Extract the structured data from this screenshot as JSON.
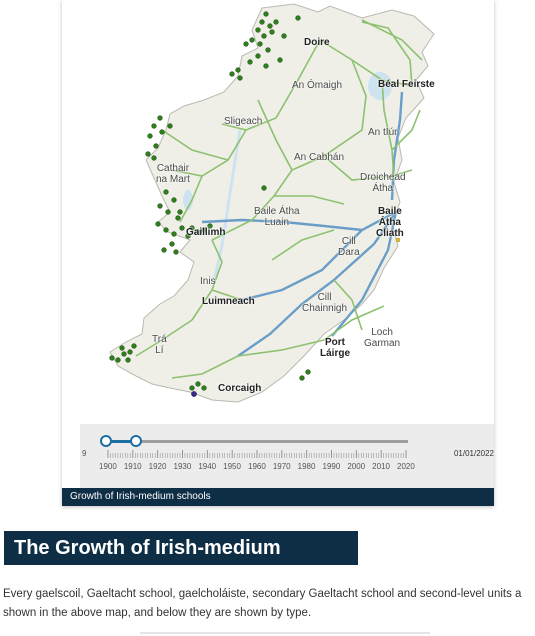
{
  "map": {
    "places": [
      {
        "id": "doire",
        "lines": [
          "Doire"
        ],
        "major": true
      },
      {
        "id": "an-omaigh",
        "lines": [
          "An Ómaigh"
        ],
        "major": false
      },
      {
        "id": "beal-feirste",
        "lines": [
          "Béal Feirste"
        ],
        "major": true
      },
      {
        "id": "sligeach",
        "lines": [
          "Sligeach"
        ],
        "major": false
      },
      {
        "id": "an-tiur",
        "lines": [
          "An tIúr"
        ],
        "major": false
      },
      {
        "id": "an-cabhan",
        "lines": [
          "An Cabhán"
        ],
        "major": false
      },
      {
        "id": "cathair-na-mart",
        "lines": [
          "Cathair",
          "na Mart"
        ],
        "major": false
      },
      {
        "id": "droichead-atha",
        "lines": [
          "Droichead",
          "Átha"
        ],
        "major": false
      },
      {
        "id": "baile-atha-luain",
        "lines": [
          "Baile Átha",
          "Luain"
        ],
        "major": false
      },
      {
        "id": "gaillimh",
        "lines": [
          "Gaillimh"
        ],
        "major": true
      },
      {
        "id": "baile-atha-cliath",
        "lines": [
          "Baile",
          "Átha",
          "Cliath"
        ],
        "major": true
      },
      {
        "id": "cill-dara",
        "lines": [
          "Cill",
          "Dara"
        ],
        "major": false
      },
      {
        "id": "inis",
        "lines": [
          "Inis"
        ],
        "major": false
      },
      {
        "id": "luimneach",
        "lines": [
          "Luimneach"
        ],
        "major": true
      },
      {
        "id": "cill-chainnigh",
        "lines": [
          "Cill",
          "Chainnigh"
        ],
        "major": false
      },
      {
        "id": "loch-garman",
        "lines": [
          "Loch",
          "Garman"
        ],
        "major": false
      },
      {
        "id": "tra-li",
        "lines": [
          "Trá",
          "Lí"
        ],
        "major": false
      },
      {
        "id": "port-lairge",
        "lines": [
          "Port",
          "Láirge"
        ],
        "major": true
      },
      {
        "id": "corcaigh",
        "lines": [
          "Corcaigh"
        ],
        "major": true
      }
    ],
    "colors": {
      "land": "#efefe8",
      "sea": "#ffffff",
      "roads": "#8cc16f",
      "motorways": "#6a9ec8",
      "school": "#2f7d1e",
      "school_edge": "#1d4f12"
    }
  },
  "timeline": {
    "years": [
      "1900",
      "1910",
      "1920",
      "1930",
      "1940",
      "1950",
      "1960",
      "1970",
      "1980",
      "1990",
      "2000",
      "2010",
      "2020"
    ],
    "current_date": "01/01/2022",
    "edge_label": "9",
    "range_start_fraction": 0.0,
    "range_end_fraction": 0.1,
    "colors": {
      "track": "#9e9e9e",
      "range": "#1c6ea4"
    }
  },
  "caption": "Growth of Irish-medium schools",
  "heading": "The Growth of Irish-medium Schools",
  "body": {
    "line1": "Every gaelscoil, Gaeltacht school, gaelcholáiste, secondary Gaeltacht school and second-level units a",
    "line2": "shown in the above map, and below they are shown by type."
  }
}
